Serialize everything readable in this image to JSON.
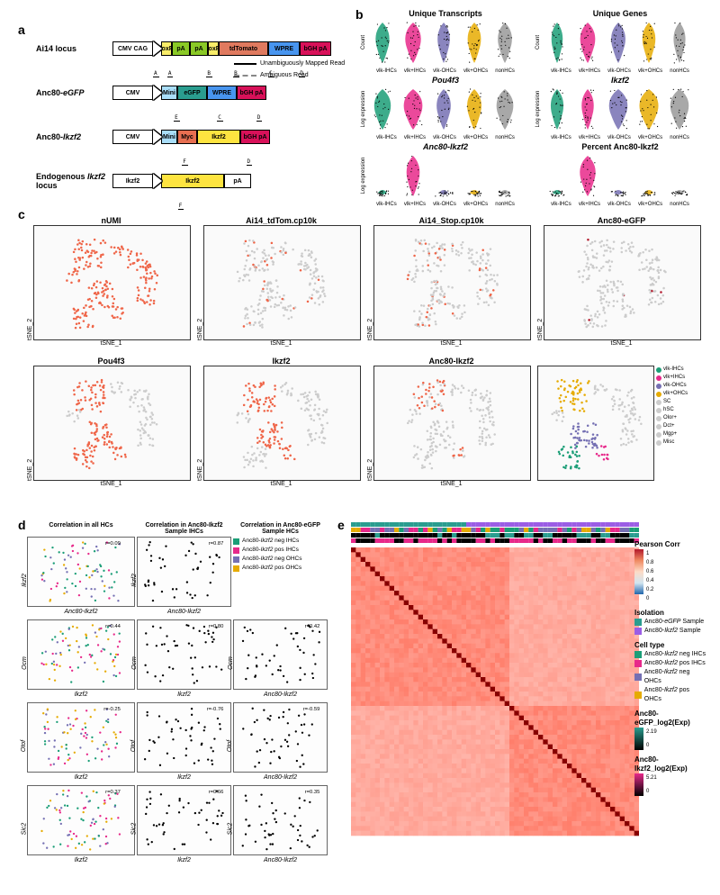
{
  "labels": {
    "a": "a",
    "b": "b",
    "c": "c",
    "d": "d",
    "e": "e"
  },
  "colors": {
    "teal": "#1b9e77",
    "magenta": "#e7298a",
    "purple": "#7570b3",
    "orange": "#e6ab02",
    "grey": "#999999",
    "lightgrey": "#cccccc",
    "red": "#ef6548",
    "darkred": "#b2182b",
    "cmvbox": "#ffffff",
    "loxp": "#f9ed69",
    "pa": "#8ac926",
    "tdtomato": "#e07a5f",
    "wpre": "#4895ef",
    "bgh": "#d81159",
    "egfp": "#2a9d8f",
    "myc": "#e76f51",
    "ikzf2": "#fee440",
    "mini": "#a9def9",
    "black": "#000000",
    "dashgrey": "#888888"
  },
  "panelA": {
    "constructs": [
      {
        "label": "Ai14 locus",
        "promoter": "CMV CAG",
        "segments": [
          {
            "w": 12,
            "c": "loxp",
            "t": "loxP"
          },
          {
            "w": 20,
            "c": "pa",
            "t": "pA"
          },
          {
            "w": 20,
            "c": "pa",
            "t": "pA"
          },
          {
            "w": 12,
            "c": "loxp",
            "t": "loxP"
          },
          {
            "w": 55,
            "c": "tdtomato",
            "t": "tdTomato"
          },
          {
            "w": 35,
            "c": "wpre",
            "t": "WPRE"
          },
          {
            "w": 35,
            "c": "bgh",
            "t": "bGH pA"
          }
        ],
        "reads": "A  A        B     B       C      D"
      },
      {
        "label": "Anc80-eGFP",
        "promoter": "CMV",
        "segments": [
          {
            "w": 18,
            "c": "mini",
            "t": "Mini"
          },
          {
            "w": 33,
            "c": "egfp",
            "t": "eGFP"
          },
          {
            "w": 33,
            "c": "wpre",
            "t": "WPRE"
          },
          {
            "w": 33,
            "c": "bgh",
            "t": "bGH pA"
          }
        ],
        "reads": "     E         C        D"
      },
      {
        "label": "Anc80-Ikzf2",
        "promoter": "CMV",
        "segments": [
          {
            "w": 18,
            "c": "mini",
            "t": "Mini"
          },
          {
            "w": 22,
            "c": "myc",
            "t": "Myc"
          },
          {
            "w": 48,
            "c": "ikzf2",
            "t": "Ikzf2"
          },
          {
            "w": 33,
            "c": "bgh",
            "t": "bGH pA"
          }
        ],
        "reads": "       F              D"
      },
      {
        "label": "Endogenous Ikzf2 locus",
        "promoter": "Ikzf2",
        "segments": [
          {
            "w": 70,
            "c": "ikzf2",
            "t": "Ikzf2"
          },
          {
            "w": 30,
            "c": "cmvbox",
            "t": "pA"
          }
        ],
        "reads": "      F"
      }
    ],
    "legend": {
      "mapped": "Unambiguously Mapped Read",
      "ambiguous": "Ambiguous Read"
    }
  },
  "panelB": {
    "groups": [
      "vlk-IHCs",
      "vlk+IHCs",
      "vlk-OHCs",
      "vlk+OHCs",
      "nonHCs"
    ],
    "plots": [
      {
        "title": "Unique Transcripts",
        "style": "nostyle",
        "ylabel": "Count"
      },
      {
        "title": "Unique Genes",
        "style": "nostyle",
        "ylabel": "Count"
      },
      {
        "title": "Pou4f3",
        "style": "",
        "ylabel": "Log expression"
      },
      {
        "title": "Ikzf2",
        "style": "",
        "ylabel": "Log expression"
      },
      {
        "title": "Anc80-Ikzf2",
        "style": "",
        "ylabel": "Log expression"
      },
      {
        "title": "Percent Anc80-Ikzf2",
        "style": "nostyle",
        "ylabel": ""
      }
    ]
  },
  "panelC": {
    "plots": [
      "nUMI",
      "Ai14_tdTom.cp10k",
      "Ai14_Stop.cp10k",
      "Anc80-eGFP",
      "Pou4f3",
      "Ikzf2",
      "Anc80-Ikzf2"
    ],
    "xaxis": "tSNE_1",
    "yaxis": "tSNE_2",
    "ticks": [
      "-20",
      "-10",
      "0",
      "10",
      "20"
    ],
    "clusterLabels": [
      "vlk-IHCs",
      "vlk+IHCs",
      "vlk-OHCs",
      "vlk+OHCs",
      "SC",
      "hSC",
      "Olor+",
      "Dct+",
      "Mgp+",
      "Misc"
    ],
    "clusterColors": [
      "teal",
      "magenta",
      "purple",
      "orange",
      "lightgrey",
      "lightgrey",
      "lightgrey",
      "lightgrey",
      "lightgrey",
      "lightgrey"
    ]
  },
  "panelD": {
    "col1title": "Correlation in all HCs",
    "col2title": "Correlation in Anc80-Ikzf2 Sample IHCs",
    "col3title": "Correlation in Anc80-eGFP Sample HCs",
    "rows": [
      {
        "y": "Ikzf2",
        "x1": "Anc80-Ikzf2",
        "r1": "r=0.09",
        "x2": "Anc80-Ikzf2",
        "r2": "r=0.87",
        "x3": "",
        "r3": ""
      },
      {
        "y": "Ocm",
        "x1": "Ikzf2",
        "r1": "r=0.44",
        "x2": "Ikzf2",
        "r2": "r=0.80",
        "x3": "Anc80-Ikzf2",
        "r3": "r=0.42"
      },
      {
        "y": "Otof",
        "x1": "Ikzf2",
        "r1": "r=-0.25",
        "x2": "Ikzf2",
        "r2": "r=-0.76",
        "x3": "Anc80-Ikzf2",
        "r3": "r=-0.59"
      },
      {
        "y": "Sic2",
        "x1": "Ikzf2",
        "r1": "r=0.37",
        "x2": "Ikzf2",
        "r2": "r=0.66",
        "x3": "Anc80-Ikzf2",
        "r3": "r=0.35"
      }
    ],
    "legend": [
      "Anc80-Ikzf2 neg IHCs",
      "Anc80-Ikzf2 pos IHCs",
      "Anc80-Ikzf2 neg OHCs",
      "Anc80-Ikzf2 pos OHCs"
    ],
    "legendColors": [
      "teal",
      "magenta",
      "purple",
      "orange"
    ]
  },
  "panelE": {
    "pearson": {
      "title": "Pearson Corr",
      "ticks": [
        "1",
        "0.8",
        "0.6",
        "0.4",
        "0.2",
        "0"
      ]
    },
    "isolation": {
      "title": "Isolation",
      "items": [
        "Anc80-eGFP Sample",
        "Anc80-Ikzf2 Sample"
      ],
      "colors": [
        "#2a9d8f",
        "#9b5de5"
      ]
    },
    "celltype": {
      "title": "Cell type",
      "items": [
        "Anc80-Ikzf2 neg IHCs",
        "Anc80-Ikzf2 pos IHCs",
        "Anc80-Ikzf2 neg OHCs",
        "Anc80-Ikzf2 pos OHCs"
      ],
      "colors": [
        "teal",
        "magenta",
        "purple",
        "orange"
      ]
    },
    "egfp": {
      "title": "Anc80-eGFP_log2(Exp)",
      "max": "2.19",
      "min": "0"
    },
    "ikzf2": {
      "title": "Anc80-Ikzf2_log2(Exp)",
      "max": "5.21",
      "min": "0"
    }
  }
}
